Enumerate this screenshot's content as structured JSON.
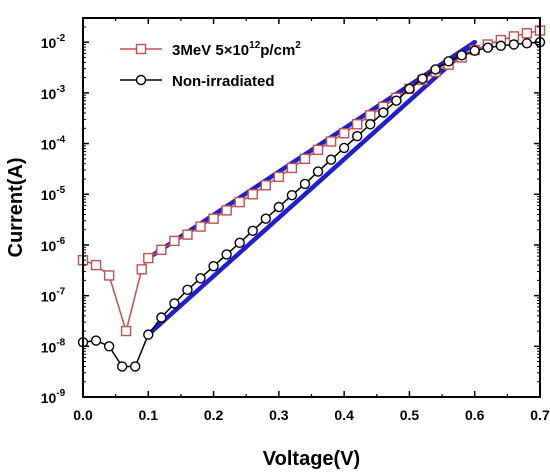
{
  "chart_data": {
    "type": "scatter",
    "xlabel": "Voltage(V)",
    "ylabel": "Current(A)",
    "xlim": [
      0.0,
      0.7
    ],
    "ylim": [
      1e-09,
      0.03
    ],
    "yscale": "log",
    "x_ticks": [
      0.0,
      0.1,
      0.2,
      0.3,
      0.4,
      0.5,
      0.6,
      0.7
    ],
    "x_tick_labels": [
      "0.0",
      "0.1",
      "0.2",
      "0.3",
      "0.4",
      "0.5",
      "0.6",
      "0.7"
    ],
    "y_ticks": [
      {
        "value": 1e-09,
        "base": "10",
        "exp": "-9"
      },
      {
        "value": 1e-08,
        "base": "10",
        "exp": "-8"
      },
      {
        "value": 1e-07,
        "base": "10",
        "exp": "-7"
      },
      {
        "value": 1e-06,
        "base": "10",
        "exp": "-6"
      },
      {
        "value": 1e-05,
        "base": "10",
        "exp": "-5"
      },
      {
        "value": 0.0001,
        "base": "10",
        "exp": "-4"
      },
      {
        "value": 0.001,
        "base": "10",
        "exp": "-3"
      },
      {
        "value": 0.01,
        "base": "10",
        "exp": "-2"
      }
    ],
    "grid": false,
    "legend_position": "top-left",
    "series": [
      {
        "name": "3MeV 5×10¹²p/cm²",
        "legend": {
          "main": "3MeV 5×10",
          "sup1": "12",
          "mid": "p/cm",
          "sup2": "2"
        },
        "color": "#c0504d",
        "marker": "square",
        "x": [
          0.0,
          0.02,
          0.04,
          0.066,
          0.09,
          0.1,
          0.12,
          0.14,
          0.16,
          0.18,
          0.2,
          0.22,
          0.24,
          0.26,
          0.28,
          0.3,
          0.32,
          0.34,
          0.36,
          0.38,
          0.4,
          0.42,
          0.44,
          0.46,
          0.48,
          0.5,
          0.52,
          0.54,
          0.56,
          0.58,
          0.6,
          0.62,
          0.64,
          0.66,
          0.68,
          0.7
        ],
        "y": [
          5e-07,
          4e-07,
          2.5e-07,
          2e-08,
          3.3e-07,
          5.5e-07,
          8e-07,
          1.2e-06,
          1.6e-06,
          2.3e-06,
          3.3e-06,
          4.8e-06,
          7e-06,
          1e-05,
          1.5e-05,
          2.2e-05,
          3.3e-05,
          5e-05,
          7.5e-05,
          0.00011,
          0.00016,
          0.00024,
          0.00036,
          0.00053,
          0.0008,
          0.0012,
          0.0018,
          0.0026,
          0.0036,
          0.005,
          0.007,
          0.009,
          0.011,
          0.013,
          0.015,
          0.017
        ]
      },
      {
        "name": "Non-irradiated",
        "legend": {
          "main": "Non-irradiated",
          "sup1": "",
          "mid": "",
          "sup2": ""
        },
        "color": "#000000",
        "marker": "circle",
        "x": [
          0.0,
          0.02,
          0.04,
          0.06,
          0.08,
          0.1,
          0.12,
          0.14,
          0.16,
          0.18,
          0.2,
          0.22,
          0.24,
          0.26,
          0.28,
          0.3,
          0.32,
          0.34,
          0.36,
          0.38,
          0.4,
          0.42,
          0.44,
          0.46,
          0.48,
          0.5,
          0.52,
          0.54,
          0.56,
          0.58,
          0.6,
          0.62,
          0.64,
          0.66,
          0.68,
          0.7
        ],
        "y": [
          1.2e-08,
          1.3e-08,
          1e-08,
          4e-09,
          4e-09,
          1.7e-08,
          3.7e-08,
          7e-08,
          1.3e-07,
          2.2e-07,
          3.8e-07,
          6.5e-07,
          1.1e-06,
          1.9e-06,
          3.3e-06,
          5.6e-06,
          9.6e-06,
          1.6e-05,
          2.8e-05,
          4.8e-05,
          8.2e-05,
          0.00014,
          0.00024,
          0.00041,
          0.0007,
          0.0012,
          0.0019,
          0.0029,
          0.0042,
          0.0055,
          0.0068,
          0.0078,
          0.0085,
          0.009,
          0.0095,
          0.01
        ]
      }
    ],
    "fit_lines": [
      {
        "color": "#1f1fd1",
        "x": [
          0.1,
          0.6
        ],
        "y": [
          5.5e-07,
          0.01
        ]
      },
      {
        "color": "#1f1fd1",
        "x": [
          0.1,
          0.6
        ],
        "y": [
          1.7e-08,
          0.01
        ]
      }
    ]
  }
}
